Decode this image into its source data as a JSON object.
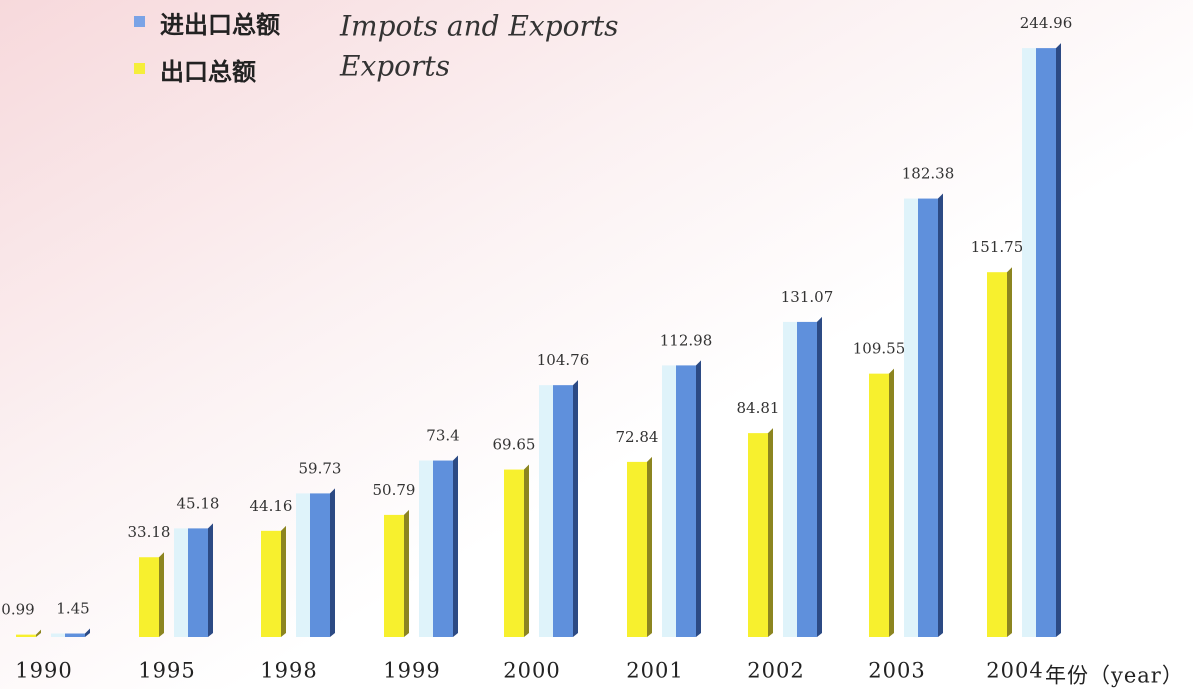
{
  "chart_data": {
    "type": "bar",
    "categories": [
      "1990",
      "1995",
      "1998",
      "1999",
      "2000",
      "2001",
      "2002",
      "2003",
      "2004"
    ],
    "x_label": "年份（year）",
    "series": [
      {
        "name": "出口总额",
        "name_en": "Exports",
        "color": "#f7f02e",
        "values": [
          0.99,
          33.18,
          44.16,
          50.79,
          69.65,
          72.84,
          84.81,
          109.55,
          151.75
        ]
      },
      {
        "name": "进出口总额",
        "name_en": "Impots and Exports",
        "color": "#5f90dc",
        "values": [
          1.45,
          45.18,
          59.73,
          73.4,
          104.76,
          112.98,
          131.07,
          182.38,
          244.96
        ]
      }
    ],
    "ylim": [
      0,
      250
    ]
  }
}
